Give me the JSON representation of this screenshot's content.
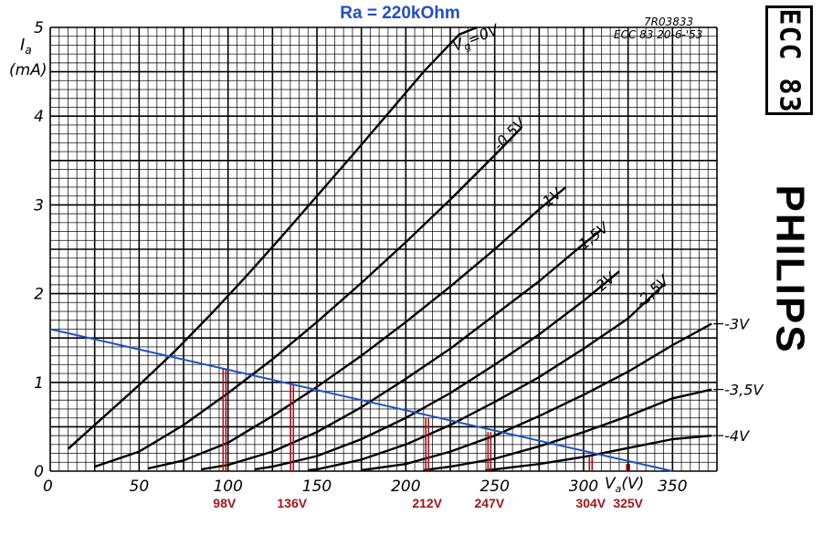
{
  "chart_data": {
    "type": "line",
    "title": "Ra = 220kOhm",
    "ylabel_symbol": "I",
    "ylabel_sub": "a",
    "ylabel_unit": "(mA)",
    "xlabel_symbol": "V",
    "xlabel_sub": "a",
    "xlabel_unit": "(V)",
    "xlim": [
      0,
      375
    ],
    "ylim": [
      0,
      5
    ],
    "x_ticks": [
      "0",
      "50",
      "100",
      "150",
      "200",
      "250",
      "300",
      "350"
    ],
    "y_ticks": [
      "0",
      "1",
      "2",
      "3",
      "4",
      "5"
    ],
    "grid": true,
    "ref_code": "7R03833",
    "ref_date": "ECC 83 20-6-'53",
    "series": [
      {
        "name": "Vg=0V",
        "label_main": "V",
        "label_sub": "g",
        "label_rest": "=0V",
        "label_at": "end",
        "x": [
          10,
          30,
          50,
          70,
          90,
          110,
          130,
          150,
          170,
          190,
          210,
          230,
          240
        ],
        "y": [
          0.25,
          0.61,
          0.97,
          1.35,
          1.76,
          2.19,
          2.64,
          3.1,
          3.56,
          4.03,
          4.5,
          4.92,
          5.0
        ]
      },
      {
        "name": "-0.5V",
        "label": "-0,5V",
        "label_at": "end",
        "x": [
          25,
          50,
          75,
          100,
          125,
          150,
          175,
          200,
          225,
          250,
          265
        ],
        "y": [
          0.05,
          0.22,
          0.52,
          0.88,
          1.26,
          1.68,
          2.12,
          2.58,
          3.06,
          3.56,
          3.87
        ]
      },
      {
        "name": "-1V",
        "label": "-1V",
        "label_at": "end",
        "x": [
          55,
          75,
          100,
          125,
          150,
          175,
          200,
          225,
          250,
          275,
          290
        ],
        "y": [
          0.03,
          0.12,
          0.32,
          0.62,
          0.95,
          1.3,
          1.68,
          2.08,
          2.5,
          2.95,
          3.2
        ]
      },
      {
        "name": "-1.5V",
        "label": "-1,5V",
        "label_at": "end",
        "x": [
          85,
          100,
          125,
          150,
          175,
          200,
          225,
          250,
          275,
          300,
          310
        ],
        "y": [
          0.02,
          0.07,
          0.22,
          0.44,
          0.72,
          1.04,
          1.38,
          1.76,
          2.14,
          2.56,
          2.72
        ]
      },
      {
        "name": "-2V",
        "label": "-2V",
        "label_at": "end",
        "x": [
          115,
          125,
          150,
          175,
          200,
          225,
          250,
          275,
          300,
          320
        ],
        "y": [
          0.02,
          0.05,
          0.17,
          0.36,
          0.6,
          0.88,
          1.2,
          1.54,
          1.92,
          2.25
        ]
      },
      {
        "name": "-2.5V",
        "label": "-2,5V",
        "label_at": "end",
        "x": [
          145,
          150,
          175,
          200,
          225,
          250,
          275,
          300,
          325,
          345
        ],
        "y": [
          0.01,
          0.02,
          0.13,
          0.3,
          0.52,
          0.78,
          1.06,
          1.38,
          1.72,
          2.1
        ]
      },
      {
        "name": "-3V",
        "label": "-3V",
        "label_at": "right",
        "x": [
          175,
          200,
          225,
          250,
          275,
          300,
          325,
          350,
          372
        ],
        "y": [
          0.01,
          0.08,
          0.22,
          0.4,
          0.62,
          0.86,
          1.12,
          1.42,
          1.66
        ]
      },
      {
        "name": "-3.5V",
        "label": "-3,5V",
        "label_at": "right",
        "x": [
          210,
          225,
          250,
          275,
          300,
          325,
          350,
          372
        ],
        "y": [
          0.01,
          0.05,
          0.14,
          0.28,
          0.44,
          0.62,
          0.82,
          0.92
        ]
      },
      {
        "name": "-4V",
        "label": "-4V",
        "label_at": "right",
        "x": [
          245,
          250,
          275,
          300,
          325,
          350,
          372
        ],
        "y": [
          0.01,
          0.02,
          0.08,
          0.16,
          0.26,
          0.36,
          0.4
        ]
      }
    ],
    "load_line": {
      "name": "Load line Ra = 220kOhm",
      "x": [
        0,
        350
      ],
      "y": [
        1.6,
        0.0
      ]
    },
    "operating_points": [
      {
        "va": 98,
        "ia": 1.15,
        "label": "98V"
      },
      {
        "va": 136,
        "ia": 0.97,
        "label": "136V"
      },
      {
        "va": 212,
        "ia": 0.6,
        "label": "212V"
      },
      {
        "va": 247,
        "ia": 0.44,
        "label": "247V"
      },
      {
        "va": 304,
        "ia": 0.17,
        "label": "304V"
      },
      {
        "va": 325,
        "ia": 0.08,
        "label": "325V"
      }
    ]
  },
  "brand": {
    "tube": "ECC 83",
    "maker": "PHILIPS"
  },
  "colors": {
    "curve": "#000000",
    "grid": "#000000",
    "load_line": "#1f4fc4",
    "title": "#1f4fc4",
    "marker": "#a3141b"
  }
}
